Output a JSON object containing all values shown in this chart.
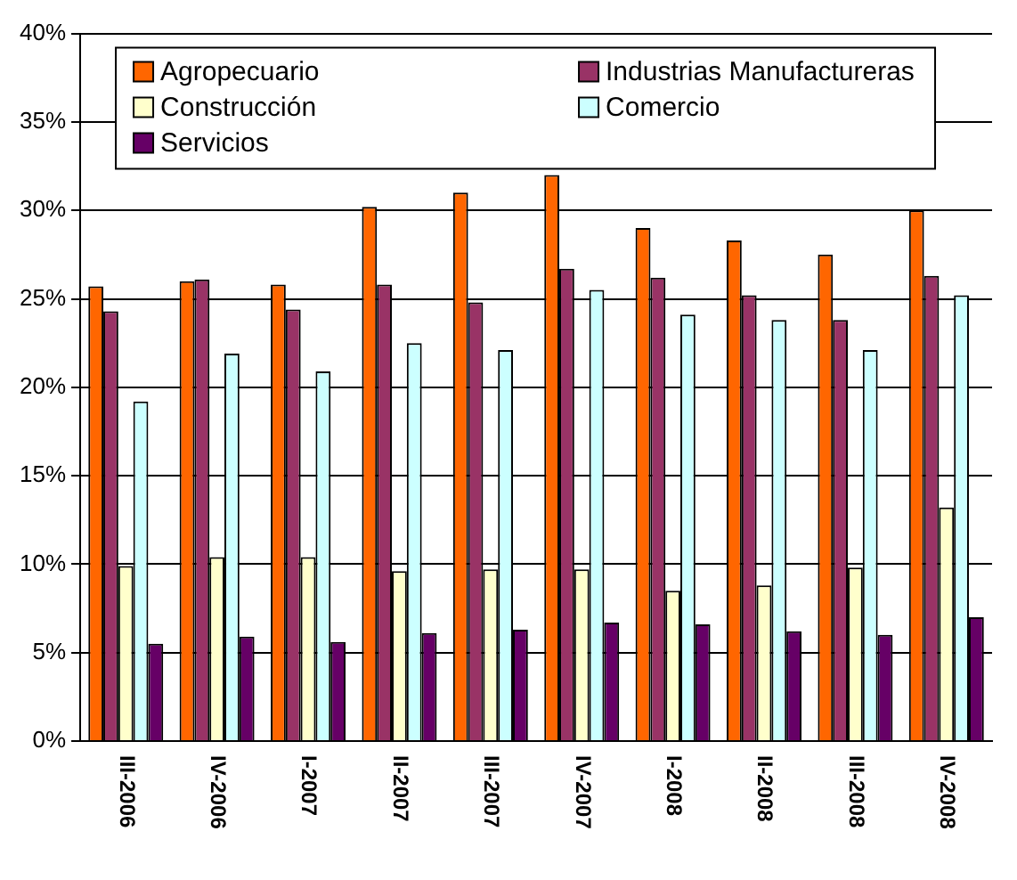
{
  "chart_data": {
    "type": "bar",
    "categories": [
      "III-2006",
      "IV-2006",
      "I-2007",
      "II-2007",
      "III-2007",
      "IV-2007",
      "I-2008",
      "II-2008",
      "III-2008",
      "IV-2008"
    ],
    "series": [
      {
        "name": "Agropecuario",
        "color": "#ff6600",
        "values": [
          25.7,
          26.0,
          25.8,
          30.2,
          31.0,
          32.0,
          29.0,
          28.3,
          27.5,
          30.0
        ]
      },
      {
        "name": "Industrias Manufactureras",
        "color": "#993366",
        "values": [
          24.3,
          26.1,
          24.4,
          25.8,
          24.8,
          26.7,
          26.2,
          25.2,
          23.8,
          26.3
        ]
      },
      {
        "name": "Construcción",
        "color": "#ffffcc",
        "values": [
          9.9,
          10.4,
          10.4,
          9.6,
          9.7,
          9.7,
          8.5,
          8.8,
          9.8,
          13.2
        ]
      },
      {
        "name": "Comercio",
        "color": "#ccffff",
        "values": [
          19.2,
          21.9,
          20.9,
          22.5,
          22.1,
          25.5,
          24.1,
          23.8,
          22.1,
          25.2
        ]
      },
      {
        "name": "Servicios",
        "color": "#660066",
        "values": [
          5.5,
          5.9,
          5.6,
          6.1,
          6.3,
          6.7,
          6.6,
          6.2,
          6.0,
          7.0
        ]
      }
    ],
    "ylim": [
      0,
      40
    ],
    "yticks": [
      {
        "value": 0,
        "label": "0%"
      },
      {
        "value": 5,
        "label": "5%"
      },
      {
        "value": 10,
        "label": "10%"
      },
      {
        "value": 15,
        "label": "15%"
      },
      {
        "value": 20,
        "label": "20%"
      },
      {
        "value": 25,
        "label": "25%"
      },
      {
        "value": 30,
        "label": "30%"
      },
      {
        "value": 35,
        "label": "35%"
      },
      {
        "value": 40,
        "label": "40%"
      }
    ],
    "grid": "y",
    "legend": "top"
  }
}
